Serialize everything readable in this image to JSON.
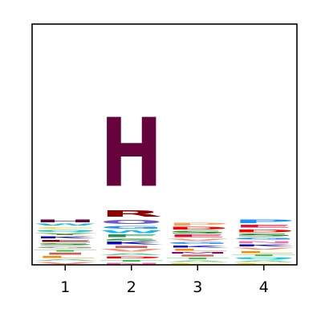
{
  "chart_data": {
    "type": "sequence-logo",
    "title": "",
    "xlabel": "",
    "ylabel": "",
    "categories": [
      "1",
      "2",
      "3",
      "4"
    ],
    "ylim": [
      0,
      4.32
    ],
    "grid": false,
    "yticks_shown": false,
    "stacks": [
      {
        "position": "1",
        "letters": [
          {
            "char": "V",
            "height": 0.06,
            "color": "#ff8c69"
          },
          {
            "char": "A",
            "height": 0.05,
            "color": "#66cdaa"
          },
          {
            "char": "L",
            "height": 0.06,
            "color": "#ff8c00"
          },
          {
            "char": "I",
            "height": 0.06,
            "color": "#cd5c5c"
          },
          {
            "char": "T",
            "height": 0.05,
            "color": "#32cd32"
          },
          {
            "char": "G",
            "height": 0.06,
            "color": "#a0a0a0"
          },
          {
            "char": "S",
            "height": 0.06,
            "color": "#228b22"
          },
          {
            "char": "E",
            "height": 0.06,
            "color": "#8b0000"
          },
          {
            "char": "K",
            "height": 0.06,
            "color": "#0000cd"
          },
          {
            "char": "Y",
            "height": 0.06,
            "color": "#6b8e23"
          },
          {
            "char": "Q",
            "height": 0.06,
            "color": "#00ced1"
          },
          {
            "char": "C",
            "height": 0.05,
            "color": "#ffd700"
          },
          {
            "char": "W",
            "height": 0.06,
            "color": "#00bfff"
          },
          {
            "char": "H",
            "height": 0.07,
            "color": "#66023c"
          }
        ]
      },
      {
        "position": "2",
        "letters": [
          {
            "char": "N",
            "height": 0.05,
            "color": "#ff69b4"
          },
          {
            "char": "T",
            "height": 0.05,
            "color": "#32cd32"
          },
          {
            "char": "D",
            "height": 0.06,
            "color": "#ff0000"
          },
          {
            "char": "A",
            "height": 0.06,
            "color": "#66cdaa"
          },
          {
            "char": "V",
            "height": 0.07,
            "color": "#ff8c69"
          },
          {
            "char": "I",
            "height": 0.06,
            "color": "#cd5c5c"
          },
          {
            "char": "K",
            "height": 0.07,
            "color": "#0000cd"
          },
          {
            "char": "S",
            "height": 0.06,
            "color": "#228b22"
          },
          {
            "char": "F",
            "height": 0.07,
            "color": "#2e8b57"
          },
          {
            "char": "W",
            "height": 0.08,
            "color": "#00bfff"
          },
          {
            "char": "G",
            "height": 0.08,
            "color": "#1e90ff"
          },
          {
            "char": "O",
            "height": 0.12,
            "color": "#6a5acd"
          },
          {
            "char": "R",
            "height": 0.18,
            "color": "#8b0000"
          },
          {
            "char": "H",
            "height": 1.98,
            "color": "#66023c"
          }
        ]
      },
      {
        "position": "3",
        "letters": [
          {
            "char": "C",
            "height": 0.04,
            "color": "#ffd700"
          },
          {
            "char": "A",
            "height": 0.05,
            "color": "#66cdaa"
          },
          {
            "char": "T",
            "height": 0.05,
            "color": "#32cd32"
          },
          {
            "char": "I",
            "height": 0.05,
            "color": "#cd5c5c"
          },
          {
            "char": "M",
            "height": 0.05,
            "color": "#8b008b"
          },
          {
            "char": "L",
            "height": 0.06,
            "color": "#ff8c00"
          },
          {
            "char": "K",
            "height": 0.06,
            "color": "#0000cd"
          },
          {
            "char": "G",
            "height": 0.06,
            "color": "#1e90ff"
          },
          {
            "char": "V",
            "height": 0.06,
            "color": "#ff8c69"
          },
          {
            "char": "E",
            "height": 0.07,
            "color": "#dc143c"
          },
          {
            "char": "S",
            "height": 0.07,
            "color": "#228b22"
          },
          {
            "char": "D",
            "height": 0.07,
            "color": "#ff0000"
          },
          {
            "char": "P",
            "height": 0.08,
            "color": "#f4a460"
          }
        ]
      },
      {
        "position": "4",
        "letters": [
          {
            "char": "C",
            "height": 0.04,
            "color": "#ffd700"
          },
          {
            "char": "A",
            "height": 0.05,
            "color": "#66cdaa"
          },
          {
            "char": "Q",
            "height": 0.06,
            "color": "#00ced1"
          },
          {
            "char": "T",
            "height": 0.05,
            "color": "#32cd32"
          },
          {
            "char": "L",
            "height": 0.06,
            "color": "#ff8c00"
          },
          {
            "char": "V",
            "height": 0.06,
            "color": "#ff8c69"
          },
          {
            "char": "K",
            "height": 0.06,
            "color": "#0000cd"
          },
          {
            "char": "N",
            "height": 0.06,
            "color": "#ff69b4"
          },
          {
            "char": "G",
            "height": 0.06,
            "color": "#1e90ff"
          },
          {
            "char": "S",
            "height": 0.07,
            "color": "#228b22"
          },
          {
            "char": "D",
            "height": 0.08,
            "color": "#ff0000"
          },
          {
            "char": "E",
            "height": 0.08,
            "color": "#dc143c"
          },
          {
            "char": "P",
            "height": 0.1,
            "color": "#1e90ff"
          }
        ]
      }
    ]
  }
}
